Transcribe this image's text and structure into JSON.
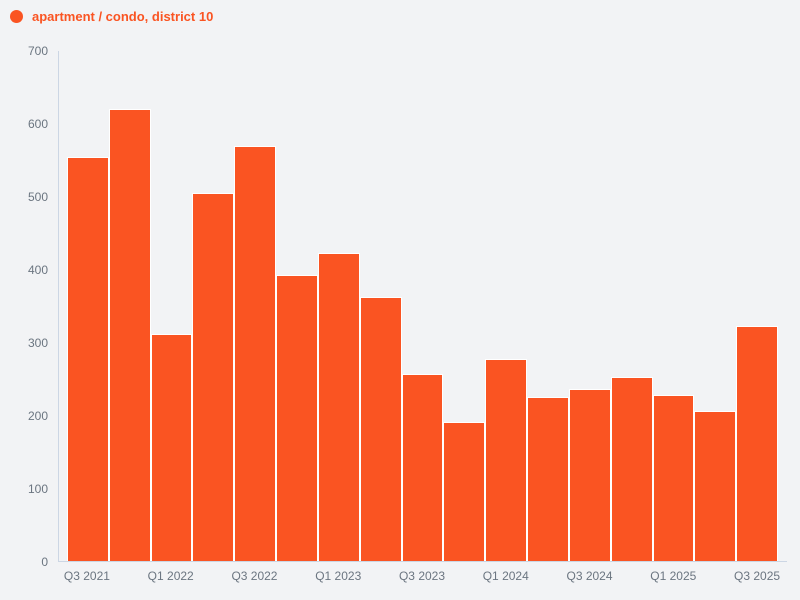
{
  "legend": {
    "label": "apartment / condo, district 10"
  },
  "colors": {
    "bar": "#fa5422",
    "background": "#f2f3f5",
    "axis_line": "#ccd6e4",
    "tick_text": "#6b7580",
    "legend_text": "#fa5422",
    "bar_stroke": "#ffffff"
  },
  "chart_data": {
    "type": "bar",
    "title": "apartment / condo, district 10",
    "categories": [
      "Q3 2021",
      "Q4 2021",
      "Q1 2022",
      "Q2 2022",
      "Q3 2022",
      "Q4 2022",
      "Q1 2023",
      "Q2 2023",
      "Q3 2023",
      "Q4 2023",
      "Q1 2024",
      "Q2 2024",
      "Q3 2024",
      "Q4 2024",
      "Q1 2025",
      "Q2 2025",
      "Q3 2025"
    ],
    "values": [
      555,
      620,
      311,
      505,
      570,
      393,
      423,
      363,
      257,
      191,
      277,
      225,
      236,
      252,
      228,
      206,
      322
    ],
    "x_tick_labels": [
      "Q3 2021",
      "Q1 2022",
      "Q3 2022",
      "Q1 2023",
      "Q3 2023",
      "Q1 2024",
      "Q3 2024",
      "Q1 2025",
      "Q3 2025"
    ],
    "x_tick_every": 2,
    "xlabel": "",
    "ylabel": "",
    "ylim": [
      0,
      700
    ],
    "yticks": [
      0,
      100,
      200,
      300,
      400,
      500,
      600,
      700
    ],
    "grid": false,
    "legend_position": "top-left",
    "series_color": "#fa5422"
  }
}
